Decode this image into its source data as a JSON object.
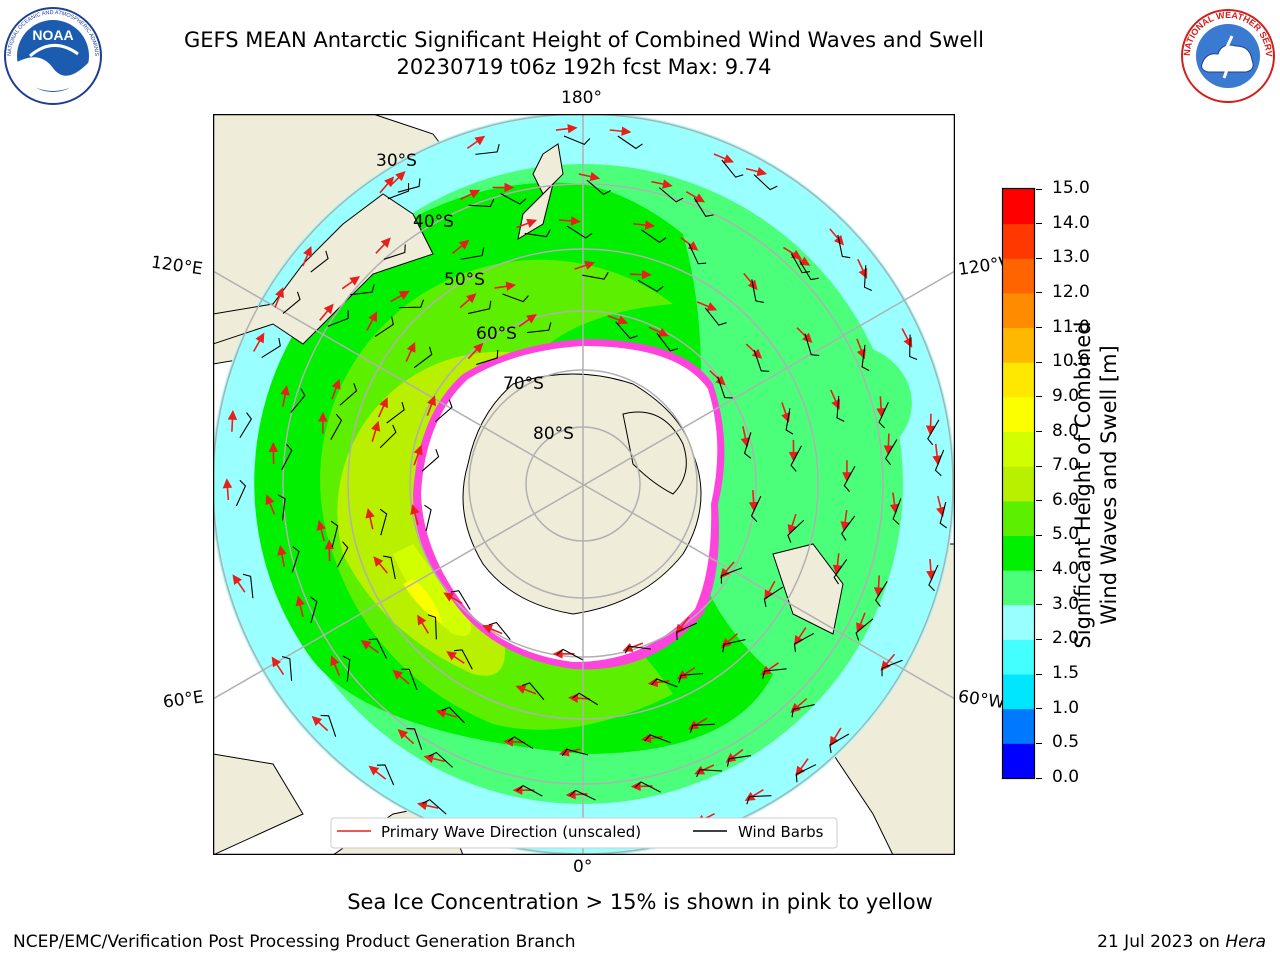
{
  "header": {
    "title_line1": "GEFS MEAN Antarctic Significant Height of Combined Wind Waves and Swell",
    "title_line2": "20230719 t06z 192h fcst   Max: 9.74"
  },
  "logos": {
    "noaa_text": "NOAA",
    "noaa_ring_text": "NATIONAL OCEANIC AND ATMOSPHERIC ADMINISTRATION · U.S. DEPARTMENT OF COMMERCE",
    "nws_ring_text": "NATIONAL WEATHER SERVICE"
  },
  "map": {
    "projection": "south-polar-stereographic",
    "lon_labels": {
      "top": "180°",
      "bottom": "0°",
      "upper_left": "120°E",
      "lower_left": "60°E",
      "upper_right": "120°W",
      "lower_right": "60°W"
    },
    "lat_labels": [
      "30°S",
      "40°S",
      "50°S",
      "60°S",
      "70°S",
      "80°S"
    ],
    "legend": {
      "primary_wave": "Primary Wave Direction (unscaled)",
      "wind_barbs": "Wind Barbs"
    },
    "colors": {
      "land": "#efedd9",
      "ice": "#ffffff",
      "ice_edge": "#ff44dd",
      "arrow": "#e8201c",
      "barb": "#000000"
    }
  },
  "colorbar": {
    "label_line1": "Significant Height of Combined",
    "label_line2": "Wind Waves and Swell [m]",
    "ticks": [
      "0.0",
      "0.5",
      "1.0",
      "1.5",
      "2.0",
      "3.0",
      "4.0",
      "5.0",
      "6.0",
      "7.0",
      "8.0",
      "9.0",
      "10.0",
      "11.0",
      "12.0",
      "13.0",
      "14.0",
      "15.0"
    ],
    "colors": [
      "#0000ff",
      "#0078ff",
      "#00e6ff",
      "#44ffff",
      "#9affff",
      "#4cff7a",
      "#00f000",
      "#5cf000",
      "#b8f000",
      "#d2ff00",
      "#fcff00",
      "#ffe800",
      "#ffb800",
      "#ff8c00",
      "#ff6400",
      "#ff3800",
      "#ff0000"
    ]
  },
  "footer": {
    "sea_ice_note": "Sea Ice Concentration > 15% is shown in pink to yellow",
    "producer": "NCEP/EMC/Verification Post Processing Product Generation Branch",
    "date": "21 Jul 2023 on ",
    "machine": "Hera"
  }
}
